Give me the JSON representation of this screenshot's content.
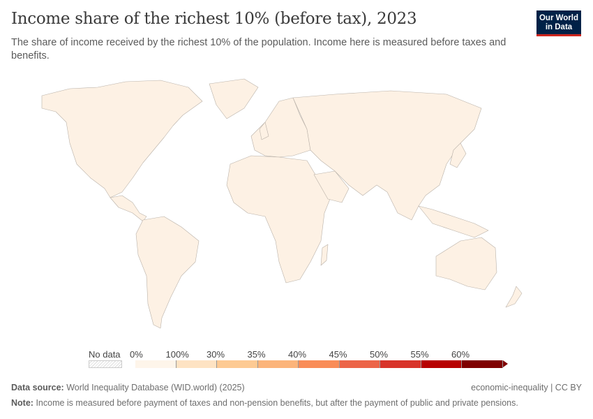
{
  "header": {
    "title": "Income share of the richest 10% (before tax), 2023",
    "subtitle": "The share of income received by the richest 10% of the population. Income here is measured before taxes and benefits.",
    "logo": "Our World in Data"
  },
  "map": {
    "fill_color": "#fdf1e4",
    "border_color": "#b9b1a8",
    "all_countries_bin": "0%–100%"
  },
  "legend": {
    "no_data_label": "No data",
    "labels": [
      "0%",
      "100%",
      "30%",
      "35%",
      "40%",
      "45%",
      "50%",
      "55%",
      "60%"
    ],
    "colors": [
      "#fef5ea",
      "#fee3c3",
      "#fdca93",
      "#fcb47a",
      "#f98c57",
      "#ec6448",
      "#d8342a",
      "#b70000",
      "#7f0000"
    ]
  },
  "footer": {
    "source_label": "Data source:",
    "source": "World Inequality Database (WID.world) (2025)",
    "license": "economic-inequality | CC BY",
    "note_label": "Note:",
    "note": "Income is measured before payment of taxes and non-pension benefits, but after the payment of public and private pensions."
  }
}
